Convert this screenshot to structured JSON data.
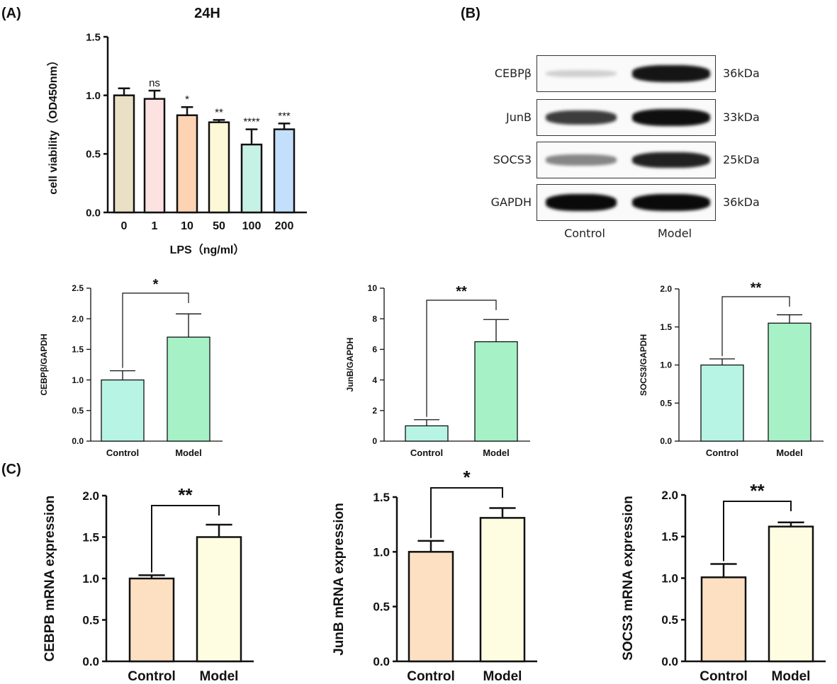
{
  "panels": {
    "A": "(A)",
    "B": "(B)",
    "C": "(C)"
  },
  "blot": {
    "proteins": [
      {
        "name": "CEBPβ",
        "kda": "36kDa",
        "intensity": [
          0.12,
          0.95
        ]
      },
      {
        "name": "JunB",
        "kda": "33kDa",
        "intensity": [
          0.78,
          0.98
        ]
      },
      {
        "name": "SOCS3",
        "kda": "25kDa",
        "intensity": [
          0.45,
          0.9
        ]
      },
      {
        "name": "GAPDH",
        "kda": "36kDa",
        "intensity": [
          1.0,
          1.0
        ]
      }
    ],
    "lanes": [
      "Control",
      "Model"
    ]
  },
  "chart_data": [
    {
      "id": "A",
      "type": "bar",
      "title": "24H",
      "xlabel": "LPS（ng/ml）",
      "ylabel": "cell viability（OD450nm）",
      "categories": [
        "0",
        "1",
        "10",
        "50",
        "100",
        "200"
      ],
      "values": [
        1.0,
        0.97,
        0.83,
        0.77,
        0.58,
        0.71
      ],
      "errors": [
        0.06,
        0.07,
        0.07,
        0.02,
        0.13,
        0.05
      ],
      "sig": [
        "",
        "ns",
        "*",
        "**",
        "****",
        "***"
      ],
      "colors": [
        "#eae0c6",
        "#fde2e2",
        "#fdd3b3",
        "#fdf8d6",
        "#c6f2e6",
        "#c3dffb"
      ],
      "ylim": [
        0,
        1.5
      ],
      "yticks": [
        "0.0",
        "0.5",
        "1.0",
        "1.5"
      ]
    },
    {
      "id": "B1",
      "type": "bar",
      "ylabel": "CEBPβ/GAPDH",
      "categories": [
        "Control",
        "Model"
      ],
      "values": [
        1.0,
        1.7
      ],
      "errors": [
        0.15,
        0.38
      ],
      "bracket": "*",
      "colors": [
        "#b7f4e4",
        "#a7f1c7"
      ],
      "ylim": [
        0,
        2.5
      ],
      "yticks": [
        "0.0",
        "0.5",
        "1.0",
        "1.5",
        "2.0",
        "2.5"
      ]
    },
    {
      "id": "B2",
      "type": "bar",
      "ylabel": "JunB/GAPDH",
      "categories": [
        "Control",
        "Model"
      ],
      "values": [
        1.0,
        6.5
      ],
      "errors": [
        0.4,
        1.45
      ],
      "bracket": "**",
      "colors": [
        "#b7f4e4",
        "#a7f1c7"
      ],
      "ylim": [
        0,
        10
      ],
      "yticks": [
        "0",
        "2",
        "4",
        "6",
        "8",
        "10"
      ]
    },
    {
      "id": "B3",
      "type": "bar",
      "ylabel": "SOCS3/GAPDH",
      "categories": [
        "Control",
        "Model"
      ],
      "values": [
        1.0,
        1.55
      ],
      "errors": [
        0.08,
        0.11
      ],
      "bracket": "**",
      "colors": [
        "#b7f4e4",
        "#a7f1c7"
      ],
      "ylim": [
        0,
        2.0
      ],
      "yticks": [
        "0.0",
        "0.5",
        "1.0",
        "1.5",
        "2.0"
      ]
    },
    {
      "id": "C1",
      "type": "bar",
      "ylabel": "CEBPB mRNA expression",
      "categories": [
        "Control",
        "Model"
      ],
      "values": [
        1.0,
        1.5
      ],
      "errors": [
        0.04,
        0.15
      ],
      "bracket": "**",
      "colors": [
        "#fde0c2",
        "#fefde2"
      ],
      "ylim": [
        0,
        2.0
      ],
      "yticks": [
        "0.0",
        "0.5",
        "1.0",
        "1.5",
        "2.0"
      ]
    },
    {
      "id": "C2",
      "type": "bar",
      "ylabel": "JunB mRNA expression",
      "categories": [
        "Control",
        "Model"
      ],
      "values": [
        1.0,
        1.31
      ],
      "errors": [
        0.1,
        0.09
      ],
      "bracket": "*",
      "colors": [
        "#fde0c2",
        "#fefde2"
      ],
      "ylim": [
        0,
        1.5
      ],
      "yticks": [
        "0.0",
        "0.5",
        "1.0",
        "1.5"
      ]
    },
    {
      "id": "C3",
      "type": "bar",
      "ylabel": "SOCS3 mRNA expression",
      "categories": [
        "Control",
        "Model"
      ],
      "values": [
        1.01,
        1.62
      ],
      "errors": [
        0.16,
        0.05
      ],
      "bracket": "**",
      "colors": [
        "#fde0c2",
        "#fefde2"
      ],
      "ylim": [
        0,
        2.0
      ],
      "yticks": [
        "0.0",
        "0.5",
        "1.0",
        "1.5",
        "2.0"
      ]
    }
  ]
}
